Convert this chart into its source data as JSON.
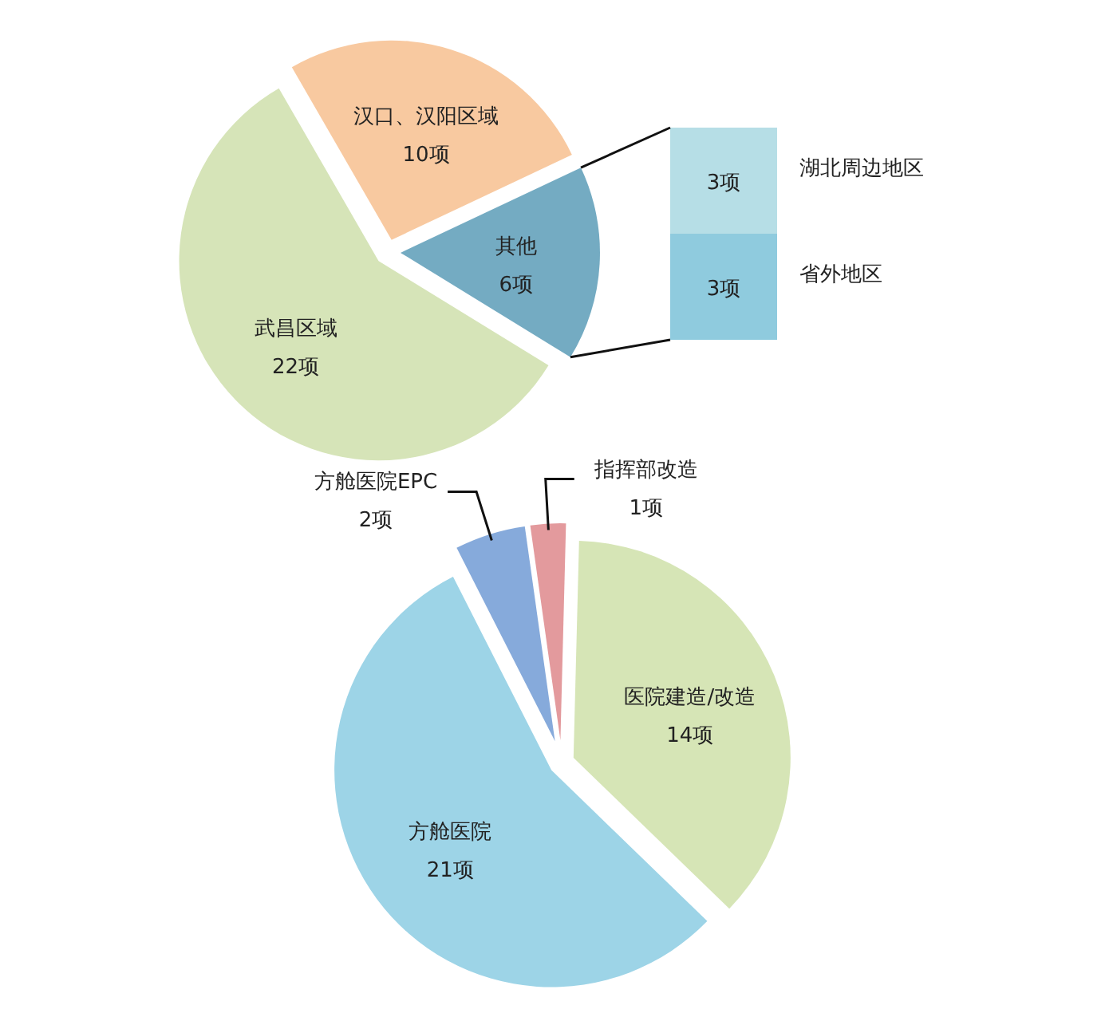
{
  "chart_data": [
    {
      "type": "pie",
      "categories": [
        "汉口、汉阳区域",
        "其他",
        "武昌区域"
      ],
      "values": [
        10,
        6,
        22
      ],
      "colors": [
        "#f8c9a0",
        "#74abc2",
        "#d6e4b8"
      ],
      "value_labels": [
        "10项",
        "6项",
        "22项"
      ]
    },
    {
      "type": "bar",
      "stacked": true,
      "categories": [
        null
      ],
      "series": [
        {
          "name": "省外地区",
          "color": "#8fcbde",
          "values": [
            3
          ],
          "value_labels": [
            "3项"
          ]
        },
        {
          "name": "湖北周边地区",
          "color": "#b6dee6",
          "values": [
            3
          ],
          "value_labels": [
            "3项"
          ]
        }
      ]
    },
    {
      "type": "pie",
      "categories": [
        "指挥部改造",
        "医院建造/改造",
        "方舱医院",
        "方舱医院EPC"
      ],
      "values": [
        1,
        14,
        21,
        2
      ],
      "colors": [
        "#e39a9d",
        "#d6e5b6",
        "#9dd4e7",
        "#86aadb"
      ],
      "value_labels": [
        "1项",
        "14项",
        "21项",
        "2项"
      ]
    }
  ]
}
